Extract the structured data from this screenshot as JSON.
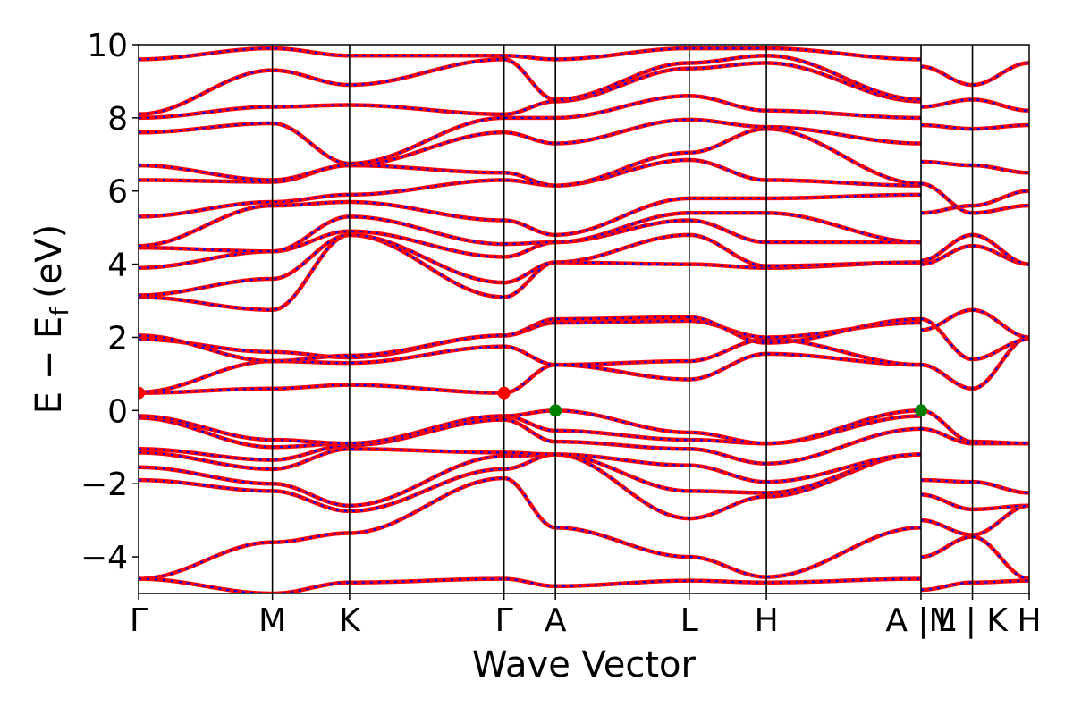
{
  "chart_data": {
    "type": "line",
    "xlabel": "Wave Vector",
    "ylabel": "E − E",
    "ylabel_subscript": "f",
    "ylabel_unit": "(eV)",
    "ylim": [
      -5,
      10
    ],
    "yticks": [
      -4,
      -2,
      0,
      2,
      4,
      6,
      8,
      10
    ],
    "ytick_labels": [
      "−4",
      "−2",
      "0",
      "2",
      "4",
      "6",
      "8",
      "10"
    ],
    "xlim": [
      0,
      6.89
    ],
    "kpath": [
      {
        "label": "Γ",
        "x": 0.0
      },
      {
        "label": "M",
        "x": 1.035
      },
      {
        "label": "K",
        "x": 1.632
      },
      {
        "label": "Γ",
        "x": 2.827
      },
      {
        "label": "A",
        "x": 3.225
      },
      {
        "label": "L",
        "x": 4.26
      },
      {
        "label": "H",
        "x": 4.857
      },
      {
        "label": "A |M",
        "x": 6.053
      },
      {
        "label": "L | K",
        "x": 6.451
      },
      {
        "label": "H",
        "x": 6.89
      }
    ],
    "grid": false,
    "legend": "none",
    "line_colors": {
      "band": "#ff0000",
      "band_overlay": "#0000ff"
    },
    "marker_colors": {
      "cbm": "#ff0000",
      "vbm": "#008000"
    },
    "special_points": [
      {
        "name": "CBM",
        "x": 0.0,
        "y": 0.48,
        "color": "#ff0000"
      },
      {
        "name": "CBM",
        "x": 2.827,
        "y": 0.48,
        "color": "#ff0000"
      },
      {
        "name": "VBM",
        "x": 3.225,
        "y": 0.0,
        "color": "#008000"
      },
      {
        "name": "VBM",
        "x": 6.053,
        "y": 0.0,
        "color": "#008000"
      }
    ],
    "series": [
      {
        "x": [
          0,
          1.035,
          1.632,
          2.827,
          3.225,
          4.26,
          4.857,
          6.053
        ],
        "y": [
          -4.6,
          -3.6,
          -3.35,
          -1.85,
          -3.2,
          -4.0,
          -4.55,
          -3.2
        ]
      },
      {
        "x": [
          0,
          1.035,
          1.632,
          2.827,
          3.225,
          4.26,
          4.857,
          6.053
        ],
        "y": [
          -4.6,
          -5.0,
          -4.7,
          -4.6,
          -4.8,
          -4.65,
          -4.7,
          -4.6
        ]
      },
      {
        "x": [
          0,
          1.035,
          1.632,
          2.827,
          3.225,
          4.26,
          4.857,
          6.053
        ],
        "y": [
          -1.9,
          -2.2,
          -2.75,
          -1.6,
          -1.2,
          -2.95,
          -2.35,
          -1.2
        ]
      },
      {
        "x": [
          0,
          1.035,
          1.632,
          2.827,
          3.225,
          4.26,
          4.857,
          6.053
        ],
        "y": [
          -1.55,
          -2.0,
          -2.6,
          -1.25,
          -1.2,
          -2.2,
          -2.25,
          -1.2
        ]
      },
      {
        "x": [
          0,
          1.035,
          1.632,
          2.827,
          3.225,
          4.26,
          4.857,
          6.053
        ],
        "y": [
          -1.15,
          -1.6,
          -1.05,
          -1.15,
          -1.2,
          -1.5,
          -1.95,
          -1.2
        ]
      },
      {
        "x": [
          0,
          1.035,
          1.632,
          2.827,
          3.225,
          4.26,
          4.857,
          6.053
        ],
        "y": [
          -1.05,
          -1.35,
          -0.95,
          -0.25,
          -0.85,
          -1.05,
          -1.45,
          -0.5
        ]
      },
      {
        "x": [
          0,
          1.035,
          1.632,
          2.827,
          3.225,
          4.26,
          4.857,
          6.053
        ],
        "y": [
          -0.2,
          -1.0,
          -0.9,
          -0.15,
          -0.55,
          -0.8,
          -0.9,
          -0.15
        ]
      },
      {
        "x": [
          0,
          1.035,
          1.632,
          2.827,
          3.225,
          4.26,
          4.857,
          6.053
        ],
        "y": [
          -0.15,
          -0.8,
          -0.9,
          -0.15,
          0.0,
          -0.6,
          -0.9,
          0.0
        ]
      },
      {
        "x": [
          0,
          1.035,
          1.632,
          2.827,
          3.225,
          4.26,
          4.857,
          6.053
        ],
        "y": [
          0.48,
          0.6,
          0.7,
          0.48,
          1.25,
          0.85,
          1.55,
          1.25
        ]
      },
      {
        "x": [
          0,
          1.035,
          1.632,
          2.827,
          3.225,
          4.26,
          4.857,
          6.053
        ],
        "y": [
          0.5,
          1.35,
          1.3,
          1.75,
          1.25,
          1.35,
          1.95,
          1.25
        ]
      },
      {
        "x": [
          0,
          1.035,
          1.632,
          2.827,
          3.225,
          4.26,
          4.857,
          6.053
        ],
        "y": [
          1.95,
          1.6,
          1.45,
          2.05,
          2.4,
          2.45,
          2.0,
          2.4
        ]
      },
      {
        "x": [
          0,
          1.035,
          1.632,
          2.827,
          3.225,
          4.26,
          4.857,
          6.053
        ],
        "y": [
          2.05,
          1.35,
          1.5,
          2.05,
          2.5,
          2.55,
          1.85,
          2.5
        ]
      },
      {
        "x": [
          0,
          1.035,
          1.632,
          2.827,
          3.225,
          4.26,
          4.857,
          6.053
        ],
        "y": [
          3.1,
          2.75,
          4.8,
          3.1,
          4.05,
          4.0,
          3.9,
          4.05
        ]
      },
      {
        "x": [
          0,
          1.035,
          1.632,
          2.827,
          3.225,
          4.26,
          4.857,
          6.053
        ],
        "y": [
          3.15,
          3.6,
          4.8,
          3.5,
          4.05,
          4.8,
          3.95,
          4.05
        ]
      },
      {
        "x": [
          0,
          1.035,
          1.632,
          2.827,
          3.225,
          4.26,
          4.857,
          6.053
        ],
        "y": [
          3.9,
          4.35,
          4.9,
          4.2,
          4.6,
          5.2,
          4.6,
          4.6
        ]
      },
      {
        "x": [
          0,
          1.035,
          1.632,
          2.827,
          3.225,
          4.26,
          4.857,
          6.053
        ],
        "y": [
          4.45,
          4.35,
          5.3,
          4.55,
          4.6,
          5.4,
          5.4,
          4.6
        ]
      },
      {
        "x": [
          0,
          1.035,
          1.632,
          2.827,
          3.225,
          4.26,
          4.857,
          6.053
        ],
        "y": [
          4.5,
          5.6,
          5.7,
          5.2,
          4.8,
          5.8,
          5.8,
          5.9
        ]
      },
      {
        "x": [
          0,
          1.035,
          1.632,
          2.827,
          3.225,
          4.26,
          4.857,
          6.053
        ],
        "y": [
          5.3,
          5.7,
          5.9,
          6.3,
          6.15,
          6.85,
          6.3,
          6.15
        ]
      },
      {
        "x": [
          0,
          1.035,
          1.632,
          2.827,
          3.225,
          4.26,
          4.857,
          6.053
        ],
        "y": [
          6.3,
          6.25,
          6.7,
          6.5,
          6.15,
          7.05,
          7.7,
          6.2
        ]
      },
      {
        "x": [
          0,
          1.035,
          1.632,
          2.827,
          3.225,
          4.26,
          4.857,
          6.053
        ],
        "y": [
          6.7,
          6.3,
          6.7,
          7.6,
          7.3,
          7.95,
          7.75,
          7.3
        ]
      },
      {
        "x": [
          0,
          1.035,
          1.632,
          2.827,
          3.225,
          4.26,
          4.857,
          6.053
        ],
        "y": [
          7.6,
          7.85,
          6.75,
          8.0,
          8.0,
          8.6,
          8.2,
          8.0
        ]
      },
      {
        "x": [
          0,
          1.035,
          1.632,
          2.827,
          3.225,
          4.26,
          4.857,
          6.053
        ],
        "y": [
          8.0,
          8.3,
          8.35,
          8.1,
          8.45,
          9.35,
          9.5,
          8.45
        ]
      },
      {
        "x": [
          0,
          1.035,
          1.632,
          2.827,
          3.225,
          4.26,
          4.857,
          6.053
        ],
        "y": [
          8.1,
          9.3,
          8.9,
          9.6,
          8.5,
          9.5,
          9.7,
          8.5
        ]
      },
      {
        "x": [
          0,
          1.035,
          1.632,
          2.827,
          3.225,
          4.26,
          4.857,
          6.053
        ],
        "y": [
          9.6,
          9.9,
          9.7,
          9.7,
          9.6,
          9.9,
          9.9,
          9.6
        ]
      },
      {
        "x": [
          6.053,
          6.451,
          6.89
        ],
        "y": [
          0.0,
          -0.85,
          -0.9
        ]
      },
      {
        "x": [
          6.053,
          6.451,
          6.89
        ],
        "y": [
          -0.5,
          -0.9,
          -0.9
        ]
      },
      {
        "x": [
          6.053,
          6.451,
          6.89
        ],
        "y": [
          -1.9,
          -1.95,
          -2.25
        ]
      },
      {
        "x": [
          6.053,
          6.451,
          6.89
        ],
        "y": [
          -2.3,
          -2.7,
          -2.6
        ]
      },
      {
        "x": [
          6.053,
          6.451,
          6.89
        ],
        "y": [
          -3.0,
          -3.4,
          -2.6
        ]
      },
      {
        "x": [
          6.053,
          6.451,
          6.89
        ],
        "y": [
          -4.0,
          -3.45,
          -4.6
        ]
      },
      {
        "x": [
          6.053,
          6.451,
          6.89
        ],
        "y": [
          -4.9,
          -4.7,
          -4.65
        ]
      },
      {
        "x": [
          6.053,
          6.451,
          6.89
        ],
        "y": [
          1.25,
          0.6,
          2.0
        ]
      },
      {
        "x": [
          6.053,
          6.451,
          6.89
        ],
        "y": [
          2.5,
          1.4,
          1.95
        ]
      },
      {
        "x": [
          6.053,
          6.451,
          6.89
        ],
        "y": [
          2.2,
          2.75,
          2.0
        ]
      },
      {
        "x": [
          6.053,
          6.451,
          6.89
        ],
        "y": [
          4.0,
          4.5,
          4.0
        ]
      },
      {
        "x": [
          6.053,
          6.451,
          6.89
        ],
        "y": [
          4.1,
          4.8,
          4.0
        ]
      },
      {
        "x": [
          6.053,
          6.451,
          6.89
        ],
        "y": [
          5.4,
          5.6,
          6.0
        ]
      },
      {
        "x": [
          6.053,
          6.451,
          6.89
        ],
        "y": [
          6.2,
          5.4,
          5.6
        ]
      },
      {
        "x": [
          6.053,
          6.451,
          6.89
        ],
        "y": [
          6.8,
          6.7,
          6.5
        ]
      },
      {
        "x": [
          6.053,
          6.451,
          6.89
        ],
        "y": [
          7.8,
          7.7,
          7.8
        ]
      },
      {
        "x": [
          6.053,
          6.451,
          6.89
        ],
        "y": [
          8.3,
          8.5,
          8.2
        ]
      },
      {
        "x": [
          6.053,
          6.451,
          6.89
        ],
        "y": [
          9.4,
          8.9,
          9.5
        ]
      }
    ]
  }
}
